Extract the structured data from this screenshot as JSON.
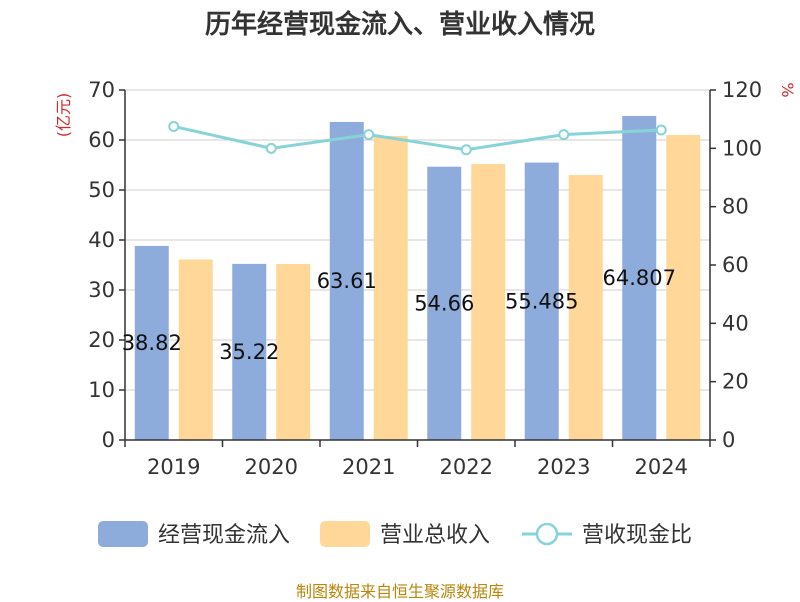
{
  "chart_data": {
    "type": "bar",
    "title": "历年经营现金流入、营业收入情况",
    "categories": [
      "2019",
      "2020",
      "2021",
      "2022",
      "2023",
      "2024"
    ],
    "series": [
      {
        "name": "经营现金流入",
        "type": "bar",
        "axis": "left",
        "color": "#8eacdb",
        "values": [
          38.82,
          35.22,
          63.61,
          54.66,
          55.485,
          64.807
        ],
        "data_labels": [
          "38.82",
          "35.22",
          "63.61",
          "54.66",
          "55.485",
          "64.807"
        ]
      },
      {
        "name": "营业总收入",
        "type": "bar",
        "axis": "left",
        "color": "#ffd799",
        "values": [
          36.1,
          35.2,
          60.8,
          55.2,
          53.0,
          61.0
        ]
      },
      {
        "name": "营收现金比",
        "type": "line",
        "axis": "right",
        "color": "#86d4d8",
        "values": [
          107.5,
          100.0,
          104.7,
          99.5,
          104.7,
          106.3
        ]
      }
    ],
    "y_left": {
      "unit": "(亿元)",
      "ylim": [
        0,
        70
      ],
      "ticks": [
        0,
        10,
        20,
        30,
        40,
        50,
        60,
        70
      ]
    },
    "y_right": {
      "unit": "%",
      "ylim": [
        0,
        120
      ],
      "ticks": [
        0,
        20,
        40,
        60,
        80,
        100,
        120
      ]
    },
    "grid": true,
    "legend_position": "bottom"
  },
  "footer": {
    "source": "制图数据来自恒生聚源数据库"
  }
}
